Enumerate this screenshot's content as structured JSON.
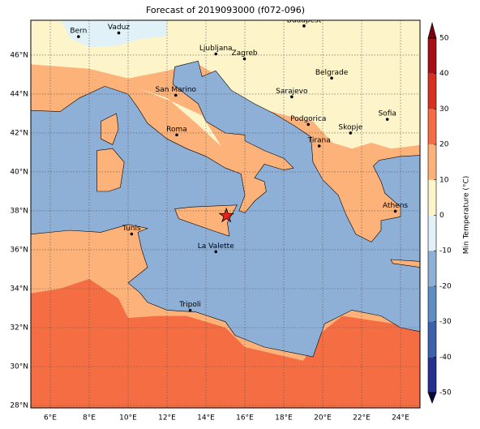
{
  "title": "Forecast of 2019093000 (f072-096)",
  "map": {
    "xlim": [
      5,
      25
    ],
    "ylim": [
      27.875,
      47.79
    ],
    "grid": true,
    "xticks": [
      {
        "value": 6,
        "label": "6°E"
      },
      {
        "value": 8,
        "label": "8°E"
      },
      {
        "value": 10,
        "label": "10°E"
      },
      {
        "value": 12,
        "label": "12°E"
      },
      {
        "value": 14,
        "label": "14°E"
      },
      {
        "value": 16,
        "label": "16°E"
      },
      {
        "value": 18,
        "label": "18°E"
      },
      {
        "value": 20,
        "label": "20°E"
      },
      {
        "value": 22,
        "label": "22°E"
      },
      {
        "value": 24,
        "label": "24°E"
      }
    ],
    "yticks": [
      {
        "value": 28,
        "label": "28°N"
      },
      {
        "value": 30,
        "label": "30°N"
      },
      {
        "value": 32,
        "label": "32°N"
      },
      {
        "value": 34,
        "label": "34°N"
      },
      {
        "value": 36,
        "label": "36°N"
      },
      {
        "value": 38,
        "label": "38°N"
      },
      {
        "value": 40,
        "label": "40°N"
      },
      {
        "value": 42,
        "label": "42°N"
      },
      {
        "value": 44,
        "label": "44°N"
      },
      {
        "value": 46,
        "label": "46°N"
      }
    ]
  },
  "cities": [
    {
      "name": "Bern",
      "lon": 7.45,
      "lat": 46.95
    },
    {
      "name": "Vaduz",
      "lon": 9.52,
      "lat": 47.14
    },
    {
      "name": "Budapest",
      "lon": 19.04,
      "lat": 47.5
    },
    {
      "name": "Ljubljana",
      "lon": 14.51,
      "lat": 46.06
    },
    {
      "name": "Zagreb",
      "lon": 15.98,
      "lat": 45.81
    },
    {
      "name": "Belgrade",
      "lon": 20.46,
      "lat": 44.82
    },
    {
      "name": "Sarajevo",
      "lon": 18.41,
      "lat": 43.86
    },
    {
      "name": "San Marino",
      "lon": 12.45,
      "lat": 43.94
    },
    {
      "name": "Sofia",
      "lon": 23.32,
      "lat": 42.7
    },
    {
      "name": "Podgorica",
      "lon": 19.26,
      "lat": 42.44
    },
    {
      "name": "Skopje",
      "lon": 21.43,
      "lat": 42.0
    },
    {
      "name": "Roma",
      "lon": 12.5,
      "lat": 41.9
    },
    {
      "name": "Tirana",
      "lon": 19.82,
      "lat": 41.33
    },
    {
      "name": "Athens",
      "lon": 23.73,
      "lat": 37.98
    },
    {
      "name": "Tunis",
      "lon": 10.18,
      "lat": 36.81
    },
    {
      "name": "La Valette",
      "lon": 14.51,
      "lat": 35.9
    },
    {
      "name": "Tripoli",
      "lon": 13.19,
      "lat": 32.89
    }
  ],
  "marker": {
    "lon": 15.05,
    "lat": 37.75,
    "color": "#e8221c"
  },
  "colorbar": {
    "label": "Min Temperature (°C)",
    "lim": [
      -50,
      50
    ],
    "ticks": [
      -50,
      -40,
      -30,
      -20,
      -10,
      0,
      10,
      20,
      30,
      40,
      50
    ],
    "under": "#08083a",
    "over": "#7a0010",
    "colors": [
      "#26308f",
      "#3d62ad",
      "#5d8dc3",
      "#8fb0d6",
      "#e1f1f8",
      "#fdf5c9",
      "#fdb27a",
      "#f46d43",
      "#d7301f",
      "#a50f15"
    ]
  }
}
